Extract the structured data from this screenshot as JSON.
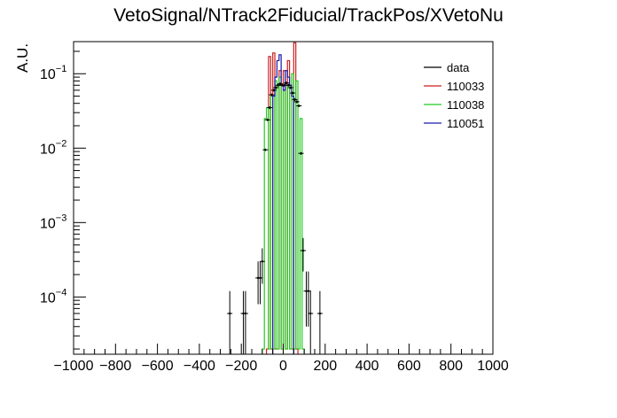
{
  "chart_data": {
    "type": "histogram",
    "title": "VetoSignal/NTrack2Fiducial/TrackPos/XVetoNu",
    "xlabel": "",
    "ylabel": "A.U.",
    "xlim": [
      -1000,
      1000
    ],
    "ylim": [
      1.7e-05,
      0.27
    ],
    "yscale": "log",
    "x_ticks": [
      "−1000",
      "−800",
      "−600",
      "−400",
      "−200",
      "0",
      "200",
      "400",
      "600",
      "800",
      "1000"
    ],
    "y_ticks": [
      {
        "value": 0.0001,
        "base": "10",
        "exp": "−4"
      },
      {
        "value": 0.001,
        "base": "10",
        "exp": "−3"
      },
      {
        "value": 0.01,
        "base": "10",
        "exp": "−2"
      },
      {
        "value": 0.1,
        "base": "10",
        "exp": "−1"
      }
    ],
    "grid": false,
    "legend_position": "top-right",
    "series": [
      {
        "name": "110033",
        "color": "#cc1f1f",
        "style": "step",
        "bins": [
          {
            "x0": -80,
            "x1": -70,
            "y": 2e-05
          },
          {
            "x0": -70,
            "x1": -60,
            "y": 0.17
          },
          {
            "x0": -60,
            "x1": -50,
            "y": 2e-05
          },
          {
            "x0": -50,
            "x1": -40,
            "y": 0.19
          },
          {
            "x0": -40,
            "x1": -30,
            "y": 2e-05
          },
          {
            "x0": -30,
            "x1": -20,
            "y": 2e-05
          },
          {
            "x0": -20,
            "x1": -10,
            "y": 0.11
          },
          {
            "x0": -10,
            "x1": 0,
            "y": 2e-05
          },
          {
            "x0": 0,
            "x1": 10,
            "y": 0.11
          },
          {
            "x0": 10,
            "x1": 20,
            "y": 2e-05
          },
          {
            "x0": 20,
            "x1": 30,
            "y": 0.15
          },
          {
            "x0": 30,
            "x1": 40,
            "y": 2e-05
          },
          {
            "x0": 40,
            "x1": 50,
            "y": 2e-05
          },
          {
            "x0": 50,
            "x1": 60,
            "y": 0.26
          },
          {
            "x0": 60,
            "x1": 70,
            "y": 2e-05
          }
        ]
      },
      {
        "name": "110038",
        "color": "#22cc22",
        "style": "step",
        "bins": [
          {
            "x0": -100,
            "x1": -90,
            "y": 2e-05
          },
          {
            "x0": -90,
            "x1": -80,
            "y": 0.025
          },
          {
            "x0": -80,
            "x1": -70,
            "y": 0.035
          },
          {
            "x0": -70,
            "x1": -60,
            "y": 2e-05
          },
          {
            "x0": -60,
            "x1": -50,
            "y": 0.05
          },
          {
            "x0": -50,
            "x1": -40,
            "y": 2e-05
          },
          {
            "x0": -40,
            "x1": -30,
            "y": 0.08
          },
          {
            "x0": -30,
            "x1": -20,
            "y": 2e-05
          },
          {
            "x0": -20,
            "x1": -10,
            "y": 0.09
          },
          {
            "x0": -10,
            "x1": 0,
            "y": 2e-05
          },
          {
            "x0": 0,
            "x1": 10,
            "y": 0.06
          },
          {
            "x0": 10,
            "x1": 20,
            "y": 2e-05
          },
          {
            "x0": 20,
            "x1": 30,
            "y": 0.07
          },
          {
            "x0": 30,
            "x1": 40,
            "y": 2e-05
          },
          {
            "x0": 40,
            "x1": 50,
            "y": 0.1
          },
          {
            "x0": 50,
            "x1": 60,
            "y": 2e-05
          },
          {
            "x0": 60,
            "x1": 70,
            "y": 0.08
          },
          {
            "x0": 70,
            "x1": 80,
            "y": 2e-05
          },
          {
            "x0": 80,
            "x1": 90,
            "y": 0.025
          },
          {
            "x0": 90,
            "x1": 100,
            "y": 2e-05
          }
        ]
      },
      {
        "name": "110051",
        "color": "#1a1aaa",
        "style": "step",
        "bins": [
          {
            "x0": -50,
            "x1": -40,
            "y": 0.05
          },
          {
            "x0": -40,
            "x1": -30,
            "y": 0.09
          },
          {
            "x0": -30,
            "x1": -20,
            "y": 0.15
          },
          {
            "x0": -20,
            "x1": -10,
            "y": 0.18
          },
          {
            "x0": -10,
            "x1": 0,
            "y": 0.07
          },
          {
            "x0": 0,
            "x1": 10,
            "y": 0.06
          },
          {
            "x0": 10,
            "x1": 20,
            "y": 0.11
          },
          {
            "x0": 20,
            "x1": 30,
            "y": 0.09
          },
          {
            "x0": 30,
            "x1": 40,
            "y": 0.07
          },
          {
            "x0": 40,
            "x1": 50,
            "y": 0.05
          }
        ]
      },
      {
        "name": "data",
        "color": "#000000",
        "style": "points",
        "points": [
          {
            "x": -255,
            "y": 6e-05,
            "yerr_lo": 4.5e-05,
            "yerr_hi": 6e-05
          },
          {
            "x": -190,
            "y": 6e-05,
            "yerr_lo": 4.5e-05,
            "yerr_hi": 6e-05
          },
          {
            "x": -180,
            "y": 6e-05,
            "yerr_lo": 4.5e-05,
            "yerr_hi": 6e-05
          },
          {
            "x": -120,
            "y": 0.00018,
            "yerr_lo": 0.0001,
            "yerr_hi": 0.00012
          },
          {
            "x": -110,
            "y": 0.00018,
            "yerr_lo": 0.0001,
            "yerr_hi": 0.00012
          },
          {
            "x": -100,
            "y": 0.0003,
            "yerr_lo": 0.00015,
            "yerr_hi": 0.00015
          },
          {
            "x": -85,
            "y": 0.0095
          },
          {
            "x": -75,
            "y": 0.024
          },
          {
            "x": -65,
            "y": 0.035
          },
          {
            "x": -55,
            "y": 0.052
          },
          {
            "x": -45,
            "y": 0.06
          },
          {
            "x": -35,
            "y": 0.065
          },
          {
            "x": -25,
            "y": 0.07
          },
          {
            "x": -15,
            "y": 0.073
          },
          {
            "x": -5,
            "y": 0.07
          },
          {
            "x": 5,
            "y": 0.07
          },
          {
            "x": 15,
            "y": 0.075
          },
          {
            "x": 25,
            "y": 0.07
          },
          {
            "x": 35,
            "y": 0.065
          },
          {
            "x": 45,
            "y": 0.055
          },
          {
            "x": 55,
            "y": 0.045
          },
          {
            "x": 65,
            "y": 0.042
          },
          {
            "x": 75,
            "y": 0.037
          },
          {
            "x": 85,
            "y": 0.0085
          },
          {
            "x": 95,
            "y": 0.00042,
            "yerr_lo": 0.0002,
            "yerr_hi": 0.0002
          },
          {
            "x": 110,
            "y": 0.00012,
            "yerr_lo": 8e-05,
            "yerr_hi": 0.0001
          },
          {
            "x": 120,
            "y": 0.00012,
            "yerr_lo": 8e-05,
            "yerr_hi": 0.0001
          },
          {
            "x": 130,
            "y": 6e-05,
            "yerr_lo": 4.5e-05,
            "yerr_hi": 6e-05
          },
          {
            "x": 175,
            "y": 6e-05,
            "yerr_lo": 4.5e-05,
            "yerr_hi": 6e-05
          }
        ]
      }
    ],
    "legend": [
      "data",
      "110033",
      "110038",
      "110051"
    ]
  }
}
